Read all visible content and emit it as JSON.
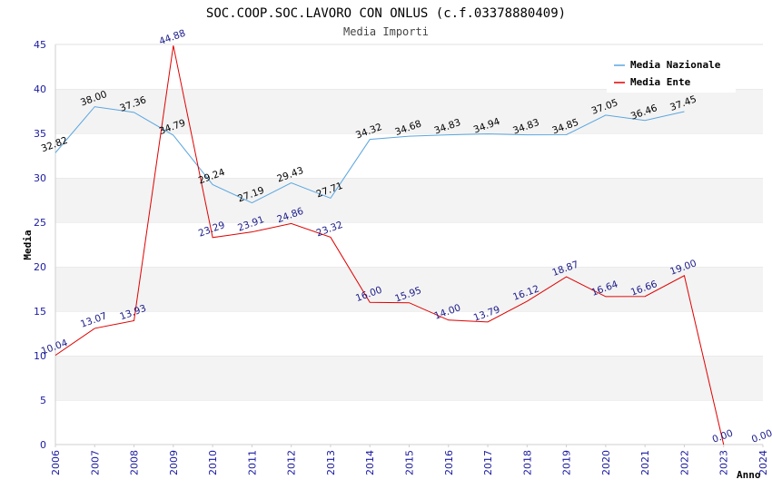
{
  "chart_data": {
    "type": "line",
    "title": "SOC.COOP.SOC.LAVORO CON ONLUS (c.f.03378880409)",
    "subtitle": "Media Importi",
    "xlabel": "Anno",
    "ylabel": "Media",
    "ylim": [
      0,
      45
    ],
    "yticks": [
      0,
      5,
      10,
      15,
      20,
      25,
      30,
      35,
      40,
      45
    ],
    "x": [
      2006,
      2007,
      2008,
      2009,
      2010,
      2011,
      2012,
      2013,
      2014,
      2015,
      2016,
      2017,
      2018,
      2019,
      2020,
      2021,
      2022,
      2023,
      2024
    ],
    "grid": "alternating horizontal bands",
    "legend_position": "top-right",
    "series": [
      {
        "name": "Media Nazionale",
        "color": "#5aa6e0",
        "x": [
          2006,
          2007,
          2008,
          2009,
          2010,
          2011,
          2012,
          2013,
          2014,
          2015,
          2016,
          2017,
          2018,
          2019,
          2020,
          2021,
          2022
        ],
        "values": [
          32.82,
          38.0,
          37.36,
          34.79,
          29.24,
          27.19,
          29.43,
          27.71,
          34.32,
          34.68,
          34.83,
          34.94,
          34.83,
          34.85,
          37.05,
          36.46,
          37.45
        ],
        "labels": [
          "32.82",
          "38.00",
          "37.36",
          "34.79",
          "29.24",
          "27.19",
          "29.43",
          "27.71",
          "34.32",
          "34.68",
          "34.83",
          "34.94",
          "34.83",
          "34.85",
          "37.05",
          "36.46",
          "37.45"
        ]
      },
      {
        "name": "Media Ente",
        "color": "#e00000",
        "x": [
          2006,
          2007,
          2008,
          2009,
          2010,
          2011,
          2012,
          2013,
          2014,
          2015,
          2016,
          2017,
          2018,
          2019,
          2020,
          2021,
          2022,
          2023,
          2024
        ],
        "values": [
          10.04,
          13.07,
          13.93,
          44.88,
          23.29,
          23.91,
          24.86,
          23.32,
          16.0,
          15.95,
          14.0,
          13.79,
          16.12,
          18.87,
          16.64,
          16.66,
          19.0,
          0.0,
          0.0
        ],
        "labels": [
          "10.04",
          "13.07",
          "13.93",
          "44.88",
          "23.29",
          "23.91",
          "24.86",
          "23.32",
          "16.00",
          "15.95",
          "14.00",
          "13.79",
          "16.12",
          "18.87",
          "16.64",
          "16.66",
          "19.00",
          "0.00",
          "0.00"
        ],
        "line_points": 18
      }
    ]
  }
}
